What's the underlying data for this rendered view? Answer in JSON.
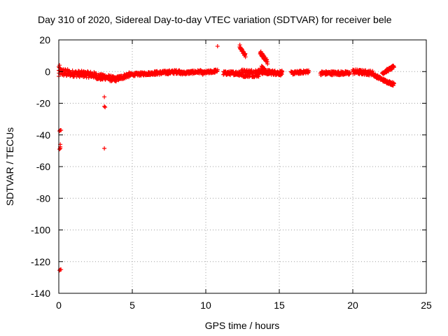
{
  "chart_data": {
    "type": "scatter",
    "title": "Day 310 of 2020, Sidereal Day-to-day VTEC variation (SDTVAR) for receiver bele",
    "xlabel": "GPS time / hours",
    "ylabel": "SDTVAR / TECUs",
    "xlim": [
      0,
      25
    ],
    "ylim": [
      -140,
      20
    ],
    "xticks": [
      0,
      5,
      10,
      15,
      20,
      25
    ],
    "yticks": [
      -140,
      -120,
      -100,
      -80,
      -60,
      -40,
      -20,
      0,
      20
    ],
    "xtick_labels": [
      "0",
      "5",
      "10",
      "15",
      "20",
      "25"
    ],
    "ytick_labels": [
      "-140",
      "-120",
      "-100",
      "-80",
      "-60",
      "-40",
      "-20",
      "0",
      "20"
    ],
    "grid": true,
    "marker": "+",
    "color": "#ff0000",
    "series": [
      {
        "segments": [
          {
            "x0": 0.0,
            "x1": 0.6,
            "y0": 0,
            "y1": -1,
            "noise": 2.5
          },
          {
            "x0": 0.6,
            "x1": 2.3,
            "y0": -1,
            "y1": -2,
            "noise": 2.0
          },
          {
            "x0": 2.3,
            "x1": 3.0,
            "y0": -2,
            "y1": -4,
            "noise": 2.0
          },
          {
            "x0": 3.0,
            "x1": 3.8,
            "y0": -3,
            "y1": -5,
            "noise": 1.8
          },
          {
            "x0": 3.8,
            "x1": 4.8,
            "y0": -5,
            "y1": -2,
            "noise": 1.5
          },
          {
            "x0": 4.8,
            "x1": 6.5,
            "y0": -2,
            "y1": -1,
            "noise": 1.0
          },
          {
            "x0": 6.5,
            "x1": 8.3,
            "y0": -1,
            "y1": 0,
            "noise": 1.2
          },
          {
            "x0": 8.3,
            "x1": 9.7,
            "y0": -1,
            "y1": 0,
            "noise": 1.0
          },
          {
            "x0": 9.7,
            "x1": 10.8,
            "y0": -1,
            "y1": 0.5,
            "noise": 1.0
          },
          {
            "x0": 11.2,
            "x1": 12.2,
            "y0": -1,
            "y1": -1,
            "noise": 1.2
          },
          {
            "x0": 12.2,
            "x1": 13.6,
            "y0": -1,
            "y1": -1,
            "noise": 2.5
          },
          {
            "x0": 13.6,
            "x1": 15.2,
            "y0": 0,
            "y1": -1,
            "noise": 1.5
          },
          {
            "x0": 15.8,
            "x1": 17.0,
            "y0": -1,
            "y1": 0,
            "noise": 1.0
          },
          {
            "x0": 17.8,
            "x1": 19.8,
            "y0": -1,
            "y1": -1,
            "noise": 1.2
          },
          {
            "x0": 20.0,
            "x1": 21.4,
            "y0": 0,
            "y1": -1,
            "noise": 1.5
          },
          {
            "x0": 21.4,
            "x1": 22.2,
            "y0": -2,
            "y1": -6,
            "noise": 1.0
          },
          {
            "x0": 22.2,
            "x1": 22.8,
            "y0": -6,
            "y1": -8,
            "noise": 1.0
          },
          {
            "x0": 22.0,
            "x1": 22.8,
            "y0": -1,
            "y1": 3,
            "noise": 1.0
          },
          {
            "x0": 12.3,
            "x1": 12.7,
            "y0": 16,
            "y1": 10,
            "noise": 1.2
          },
          {
            "x0": 13.7,
            "x1": 14.2,
            "y0": 12,
            "y1": 6,
            "noise": 1.2
          },
          {
            "x0": 13.8,
            "x1": 14.3,
            "y0": 3,
            "y1": -2,
            "noise": 1.0
          }
        ],
        "points": [
          [
            0.1,
            -37
          ],
          [
            0.15,
            -37
          ],
          [
            0.05,
            -37.5
          ],
          [
            0.1,
            -46
          ],
          [
            0.1,
            -47.5
          ],
          [
            0.05,
            -49
          ],
          [
            0.1,
            -48.5
          ],
          [
            0.1,
            -125
          ],
          [
            0.05,
            -125.5
          ],
          [
            0.15,
            -125
          ],
          [
            3.1,
            -16
          ],
          [
            3.1,
            -22
          ],
          [
            3.15,
            -22.5
          ],
          [
            3.1,
            -48.5
          ],
          [
            10.8,
            16
          ],
          [
            0.0,
            3
          ],
          [
            0.05,
            4
          ],
          [
            0.0,
            -3
          ]
        ]
      }
    ]
  }
}
